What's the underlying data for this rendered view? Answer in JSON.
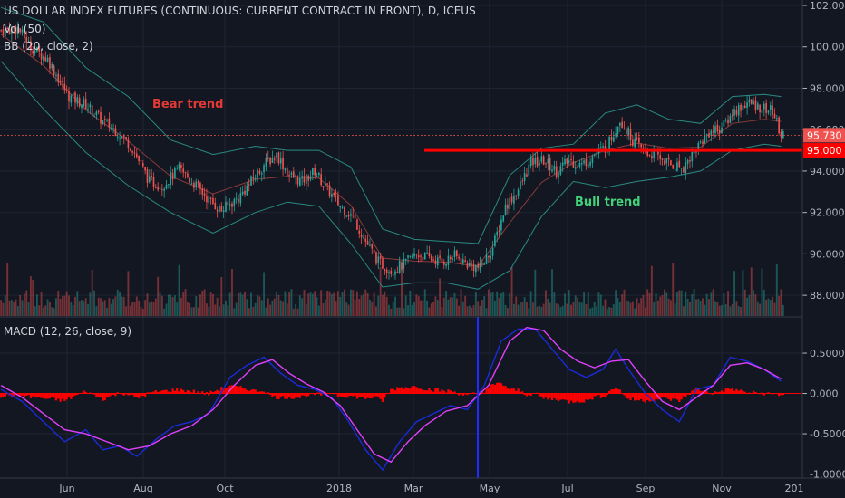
{
  "legend": {
    "title": "US DOLLAR INDEX FUTURES (CONTINUOUS: CURRENT CONTRACT IN FRONT), D, ICEUS",
    "vol": "Vol (50)",
    "bb": "BB (20, close, 2)",
    "macd": "MACD (12, 26, close, 9)"
  },
  "annotations": {
    "bear": "Bear trend",
    "bull": "Bull trend"
  },
  "colors": {
    "background": "#131722",
    "grid": "#1f2432",
    "up": "#26a69a",
    "down": "#ef5350",
    "bb": "#2a8a82",
    "basis": "#8a3b3b",
    "support": "#ff0000",
    "macd": "#1a2bd9",
    "signal": "#e040fb",
    "hist": "#ff0000",
    "bear": "#e53935",
    "bull": "#43d17a",
    "vline": "#1f2bff"
  },
  "chart_data": [
    {
      "type": "candlestick",
      "title": "US DOLLAR INDEX FUTURES (CONTINUOUS: CURRENT CONTRACT IN FRONT), D, ICEUS",
      "x_tick_labels": [
        "Jun",
        "Aug",
        "Oct",
        "2018",
        "Mar",
        "May",
        "Jul",
        "Sep",
        "Nov",
        "201"
      ],
      "y_ticks": [
        "102.000",
        "100.000",
        "98.000",
        "96.000",
        "94.000",
        "92.000",
        "90.000",
        "88.000"
      ],
      "ylim": [
        87.0,
        102.0
      ],
      "close_path": [
        [
          0,
          100.8
        ],
        [
          8,
          100.9
        ],
        [
          14,
          100.0
        ],
        [
          22,
          99.4
        ],
        [
          28,
          98.3
        ],
        [
          32,
          97.6
        ],
        [
          40,
          97.2
        ],
        [
          48,
          96.4
        ],
        [
          55,
          95.9
        ],
        [
          62,
          95.1
        ],
        [
          70,
          93.5
        ],
        [
          76,
          93.3
        ],
        [
          84,
          94.1
        ],
        [
          92,
          93.3
        ],
        [
          98,
          92.6
        ],
        [
          104,
          92.1
        ],
        [
          112,
          92.7
        ],
        [
          118,
          93.5
        ],
        [
          124,
          94.3
        ],
        [
          130,
          94.8
        ],
        [
          136,
          93.8
        ],
        [
          142,
          93.5
        ],
        [
          148,
          94.0
        ],
        [
          154,
          93.1
        ],
        [
          160,
          92.3
        ],
        [
          166,
          91.8
        ],
        [
          172,
          90.6
        ],
        [
          178,
          89.6
        ],
        [
          184,
          89.2
        ],
        [
          190,
          89.5
        ],
        [
          196,
          90.0
        ],
        [
          202,
          89.8
        ],
        [
          208,
          89.6
        ],
        [
          214,
          89.9
        ],
        [
          220,
          89.5
        ],
        [
          226,
          89.3
        ],
        [
          232,
          90.3
        ],
        [
          238,
          92.3
        ],
        [
          244,
          93.1
        ],
        [
          250,
          94.4
        ],
        [
          256,
          94.5
        ],
        [
          262,
          94.0
        ],
        [
          268,
          94.5
        ],
        [
          274,
          94.3
        ],
        [
          280,
          94.8
        ],
        [
          286,
          95.2
        ],
        [
          292,
          96.5
        ],
        [
          298,
          95.5
        ],
        [
          304,
          94.9
        ],
        [
          310,
          94.7
        ],
        [
          316,
          94.3
        ],
        [
          322,
          94.2
        ],
        [
          328,
          95.1
        ],
        [
          334,
          95.9
        ],
        [
          340,
          96.1
        ],
        [
          346,
          96.9
        ],
        [
          352,
          97.3
        ],
        [
          358,
          97.1
        ],
        [
          364,
          96.9
        ],
        [
          368,
          95.73
        ]
      ],
      "bb_upper": [
        [
          0,
          101.9
        ],
        [
          20,
          101.2
        ],
        [
          40,
          99.0
        ],
        [
          60,
          97.6
        ],
        [
          80,
          95.5
        ],
        [
          100,
          94.8
        ],
        [
          120,
          95.2
        ],
        [
          135,
          95.0
        ],
        [
          150,
          95.0
        ],
        [
          165,
          94.2
        ],
        [
          180,
          91.2
        ],
        [
          195,
          90.7
        ],
        [
          210,
          90.6
        ],
        [
          225,
          90.5
        ],
        [
          240,
          93.8
        ],
        [
          255,
          95.1
        ],
        [
          270,
          95.3
        ],
        [
          285,
          96.8
        ],
        [
          300,
          97.2
        ],
        [
          315,
          96.5
        ],
        [
          330,
          96.3
        ],
        [
          345,
          97.6
        ],
        [
          360,
          97.7
        ],
        [
          368,
          97.6
        ]
      ],
      "bb_lower": [
        [
          0,
          99.3
        ],
        [
          20,
          97.0
        ],
        [
          40,
          94.9
        ],
        [
          60,
          93.3
        ],
        [
          80,
          92.0
        ],
        [
          100,
          91.0
        ],
        [
          120,
          92.0
        ],
        [
          135,
          92.5
        ],
        [
          150,
          92.3
        ],
        [
          165,
          90.5
        ],
        [
          180,
          88.4
        ],
        [
          195,
          88.6
        ],
        [
          210,
          88.6
        ],
        [
          225,
          88.3
        ],
        [
          240,
          89.2
        ],
        [
          255,
          91.8
        ],
        [
          270,
          93.5
        ],
        [
          285,
          93.2
        ],
        [
          300,
          93.5
        ],
        [
          315,
          93.7
        ],
        [
          330,
          94.0
        ],
        [
          345,
          95.0
        ],
        [
          360,
          95.3
        ],
        [
          368,
          95.2
        ]
      ],
      "support_level": 95.0,
      "last_price": "95.730",
      "support_label": "95.000"
    },
    {
      "type": "line",
      "title": "MACD (12, 26, close, 9)",
      "y_ticks": [
        "0.5000",
        "0.000",
        "-0.5000",
        "-1.0000"
      ],
      "ylim": [
        -1.05,
        0.95
      ],
      "macd": [
        [
          0,
          0.05
        ],
        [
          10,
          -0.1
        ],
        [
          20,
          -0.35
        ],
        [
          30,
          -0.6
        ],
        [
          40,
          -0.45
        ],
        [
          48,
          -0.7
        ],
        [
          56,
          -0.65
        ],
        [
          64,
          -0.78
        ],
        [
          74,
          -0.55
        ],
        [
          82,
          -0.4
        ],
        [
          90,
          -0.35
        ],
        [
          98,
          -0.25
        ],
        [
          108,
          0.2
        ],
        [
          116,
          0.35
        ],
        [
          124,
          0.45
        ],
        [
          132,
          0.25
        ],
        [
          140,
          0.1
        ],
        [
          148,
          0.05
        ],
        [
          156,
          -0.05
        ],
        [
          164,
          -0.35
        ],
        [
          172,
          -0.7
        ],
        [
          180,
          -0.95
        ],
        [
          188,
          -0.6
        ],
        [
          196,
          -0.35
        ],
        [
          204,
          -0.25
        ],
        [
          212,
          -0.15
        ],
        [
          220,
          -0.2
        ],
        [
          228,
          0.1
        ],
        [
          236,
          0.65
        ],
        [
          244,
          0.8
        ],
        [
          252,
          0.8
        ],
        [
          260,
          0.55
        ],
        [
          268,
          0.3
        ],
        [
          276,
          0.2
        ],
        [
          284,
          0.3
        ],
        [
          290,
          0.55
        ],
        [
          296,
          0.3
        ],
        [
          304,
          0.0
        ],
        [
          312,
          -0.2
        ],
        [
          320,
          -0.35
        ],
        [
          328,
          0.05
        ],
        [
          336,
          0.1
        ],
        [
          344,
          0.45
        ],
        [
          352,
          0.4
        ],
        [
          360,
          0.3
        ],
        [
          368,
          0.15
        ]
      ],
      "signal": [
        [
          0,
          0.1
        ],
        [
          10,
          -0.05
        ],
        [
          20,
          -0.25
        ],
        [
          30,
          -0.45
        ],
        [
          40,
          -0.5
        ],
        [
          50,
          -0.6
        ],
        [
          60,
          -0.7
        ],
        [
          70,
          -0.65
        ],
        [
          80,
          -0.5
        ],
        [
          90,
          -0.4
        ],
        [
          100,
          -0.2
        ],
        [
          110,
          0.1
        ],
        [
          120,
          0.35
        ],
        [
          128,
          0.42
        ],
        [
          136,
          0.25
        ],
        [
          144,
          0.12
        ],
        [
          152,
          0.02
        ],
        [
          160,
          -0.15
        ],
        [
          168,
          -0.45
        ],
        [
          176,
          -0.75
        ],
        [
          184,
          -0.85
        ],
        [
          192,
          -0.6
        ],
        [
          200,
          -0.4
        ],
        [
          210,
          -0.22
        ],
        [
          220,
          -0.15
        ],
        [
          230,
          0.1
        ],
        [
          240,
          0.65
        ],
        [
          248,
          0.82
        ],
        [
          256,
          0.78
        ],
        [
          264,
          0.55
        ],
        [
          272,
          0.4
        ],
        [
          280,
          0.32
        ],
        [
          288,
          0.4
        ],
        [
          296,
          0.42
        ],
        [
          304,
          0.15
        ],
        [
          312,
          -0.1
        ],
        [
          320,
          -0.2
        ],
        [
          328,
          -0.05
        ],
        [
          336,
          0.1
        ],
        [
          344,
          0.35
        ],
        [
          352,
          0.38
        ],
        [
          360,
          0.3
        ],
        [
          368,
          0.18
        ]
      ]
    }
  ]
}
